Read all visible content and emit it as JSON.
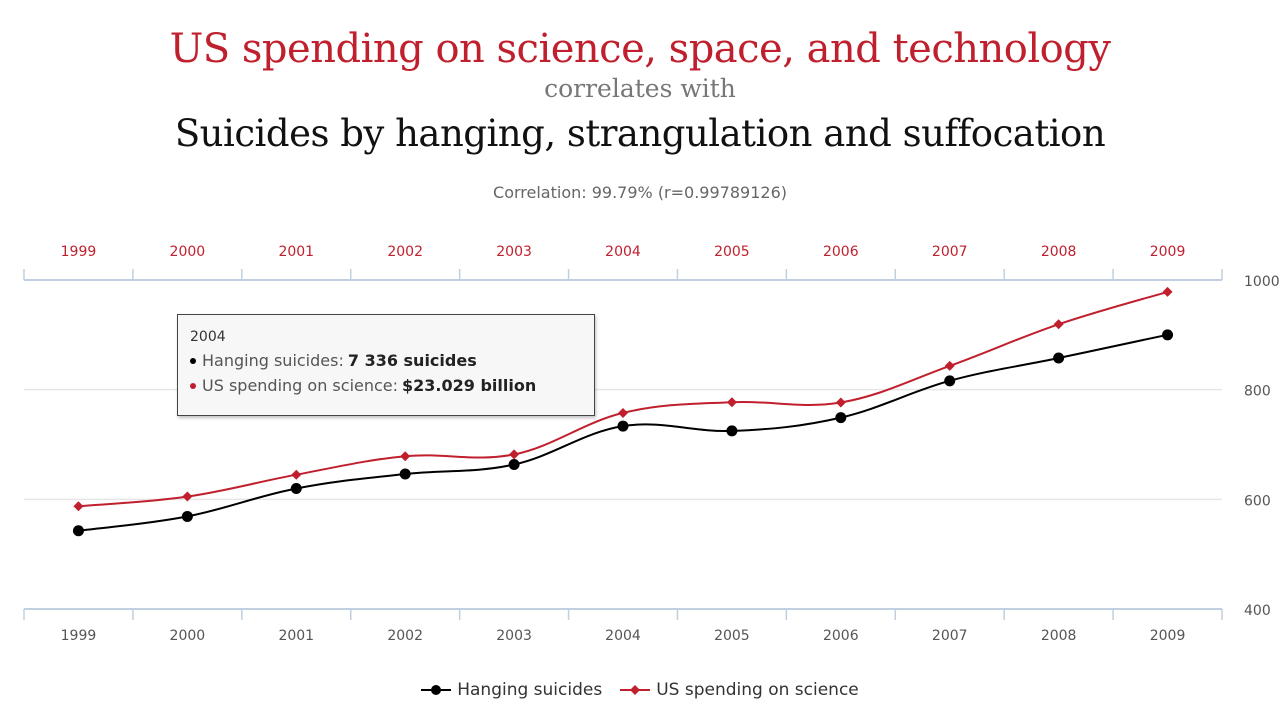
{
  "header": {
    "title": "US spending on science, space, and technology",
    "subtitle": "correlates with",
    "title2": "Suicides by hanging, strangulation and suffocation",
    "correlation": "Correlation: 99.79% (r=0.99789126)"
  },
  "tooltip": {
    "year": "2004",
    "rows": [
      {
        "label": "Hanging suicides:",
        "value": "7 336 suicides",
        "color": "#000000"
      },
      {
        "label": "US spending on science:",
        "value": "$23.029 billion",
        "color": "#c0202e"
      }
    ]
  },
  "legend": [
    {
      "name": "Hanging suicides",
      "color": "#000000"
    },
    {
      "name": "US spending on science",
      "color": "#c0202e"
    }
  ],
  "chart_data": {
    "type": "line",
    "x": [
      "1999",
      "2000",
      "2001",
      "2002",
      "2003",
      "2004",
      "2005",
      "2006",
      "2007",
      "2008",
      "2009"
    ],
    "right_axis_ticks": [
      "1000",
      "800",
      "600",
      "400"
    ],
    "right_axis_values": [
      1000,
      800,
      600,
      400
    ],
    "y_visual_range": [
      400,
      1000
    ],
    "series": [
      {
        "name": "Hanging suicides",
        "color": "#000000",
        "values": [
          5427,
          5688,
          6198,
          6462,
          6635,
          7336,
          7248,
          7491,
          8161,
          8578,
          9000
        ]
      },
      {
        "name": "US spending on science",
        "color": "#c0202e",
        "values": [
          18.079,
          18.594,
          19.753,
          20.734,
          20.831,
          23.029,
          23.597,
          23.584,
          25.525,
          27.731,
          29.449
        ]
      }
    ],
    "series_visual_scale": [
      {
        "min": 4000,
        "max": 10000
      },
      {
        "min": 12.63,
        "max": 30.08
      }
    ],
    "colors": {
      "axis": "#c0d0e0",
      "grid": "#e6e6e6",
      "top_tick_label": "#c0202e",
      "bottom_tick_label": "#555555"
    }
  }
}
